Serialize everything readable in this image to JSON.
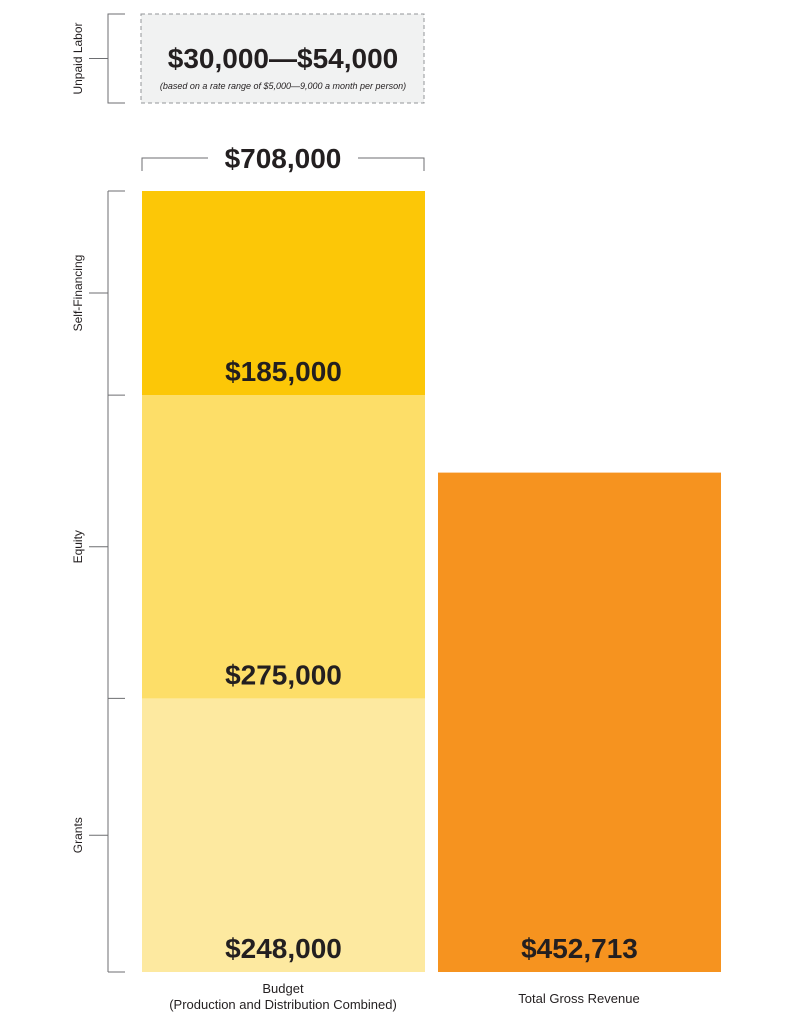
{
  "chart_data": {
    "type": "bar",
    "title": "",
    "xlabel": "",
    "ylabel": "",
    "categories": [
      {
        "line1": "Budget",
        "line2": "(Production and Distribution Combined)"
      },
      {
        "line1": "Total Gross Revenue",
        "line2": ""
      }
    ],
    "budget_total": "$708,000",
    "budget_segments": [
      {
        "name": "Grants",
        "value": 248000,
        "label": "$248,000",
        "color": "#fde9a0"
      },
      {
        "name": "Equity",
        "value": 275000,
        "label": "$275,000",
        "color": "#fdde68"
      },
      {
        "name": "Self-Financing",
        "value": 185000,
        "label": "$185,000",
        "color": "#fcc707"
      }
    ],
    "revenue": {
      "value": 452713,
      "label": "$452,713",
      "color": "#f6931f"
    },
    "unpaid_labor": {
      "name": "Unpaid Labor",
      "range_low": "$30,000",
      "range_high": "$54,000",
      "note": "(based on a rate range of $5,000—9,000 a month per person)",
      "box_color": "#f1f2f2"
    },
    "grid": false,
    "legend": "none"
  }
}
